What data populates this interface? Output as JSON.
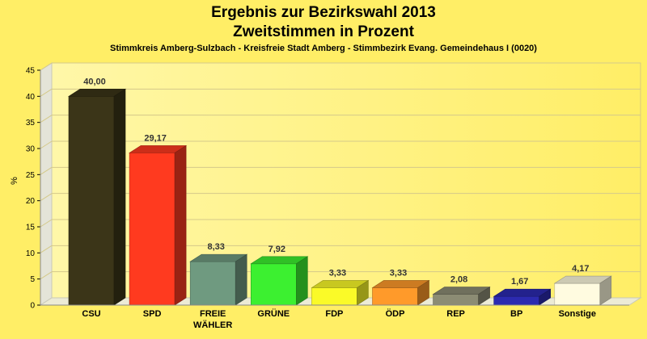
{
  "header": {
    "title_line1": "Ergebnis zur Bezirkswahl 2013",
    "title_line2": "Zweitstimmen in Prozent",
    "subtitle": "Stimmkreis Amberg-Sulzbach - Kreisfreie Stadt Amberg - Stimmbezirk Evang. Gemeindehaus I (0020)"
  },
  "chart_data": {
    "type": "bar",
    "title": "Ergebnis zur Bezirkswahl 2013 Zweitstimmen in Prozent",
    "subtitle": "Stimmkreis Amberg-Sulzbach - Kreisfreie Stadt Amberg - Stimmbezirk Evang. Gemeindehaus I (0020)",
    "xlabel": "",
    "ylabel": "%",
    "ylim": [
      0,
      45
    ],
    "yticks": [
      0,
      5,
      10,
      15,
      20,
      25,
      30,
      35,
      40,
      45
    ],
    "grid": true,
    "categories": [
      [
        "CSU"
      ],
      [
        "SPD"
      ],
      [
        "FREIE",
        "WÄHLER"
      ],
      [
        "GRÜNE"
      ],
      [
        "FDP"
      ],
      [
        "ÖDP"
      ],
      [
        "REP"
      ],
      [
        "BP"
      ],
      [
        "Sonstige"
      ]
    ],
    "values": [
      40.0,
      29.17,
      8.33,
      7.92,
      3.33,
      3.33,
      2.08,
      1.67,
      4.17
    ],
    "value_labels": [
      "40,00",
      "29,17",
      "8,33",
      "7,92",
      "3,33",
      "3,33",
      "2,08",
      "1,67",
      "4,17"
    ],
    "colors": [
      "#3b3518",
      "#ff3a1f",
      "#6f9a80",
      "#3cf030",
      "#fafa28",
      "#ff9a2a",
      "#8c8c74",
      "#2c2ab0",
      "#fffbe0"
    ]
  }
}
